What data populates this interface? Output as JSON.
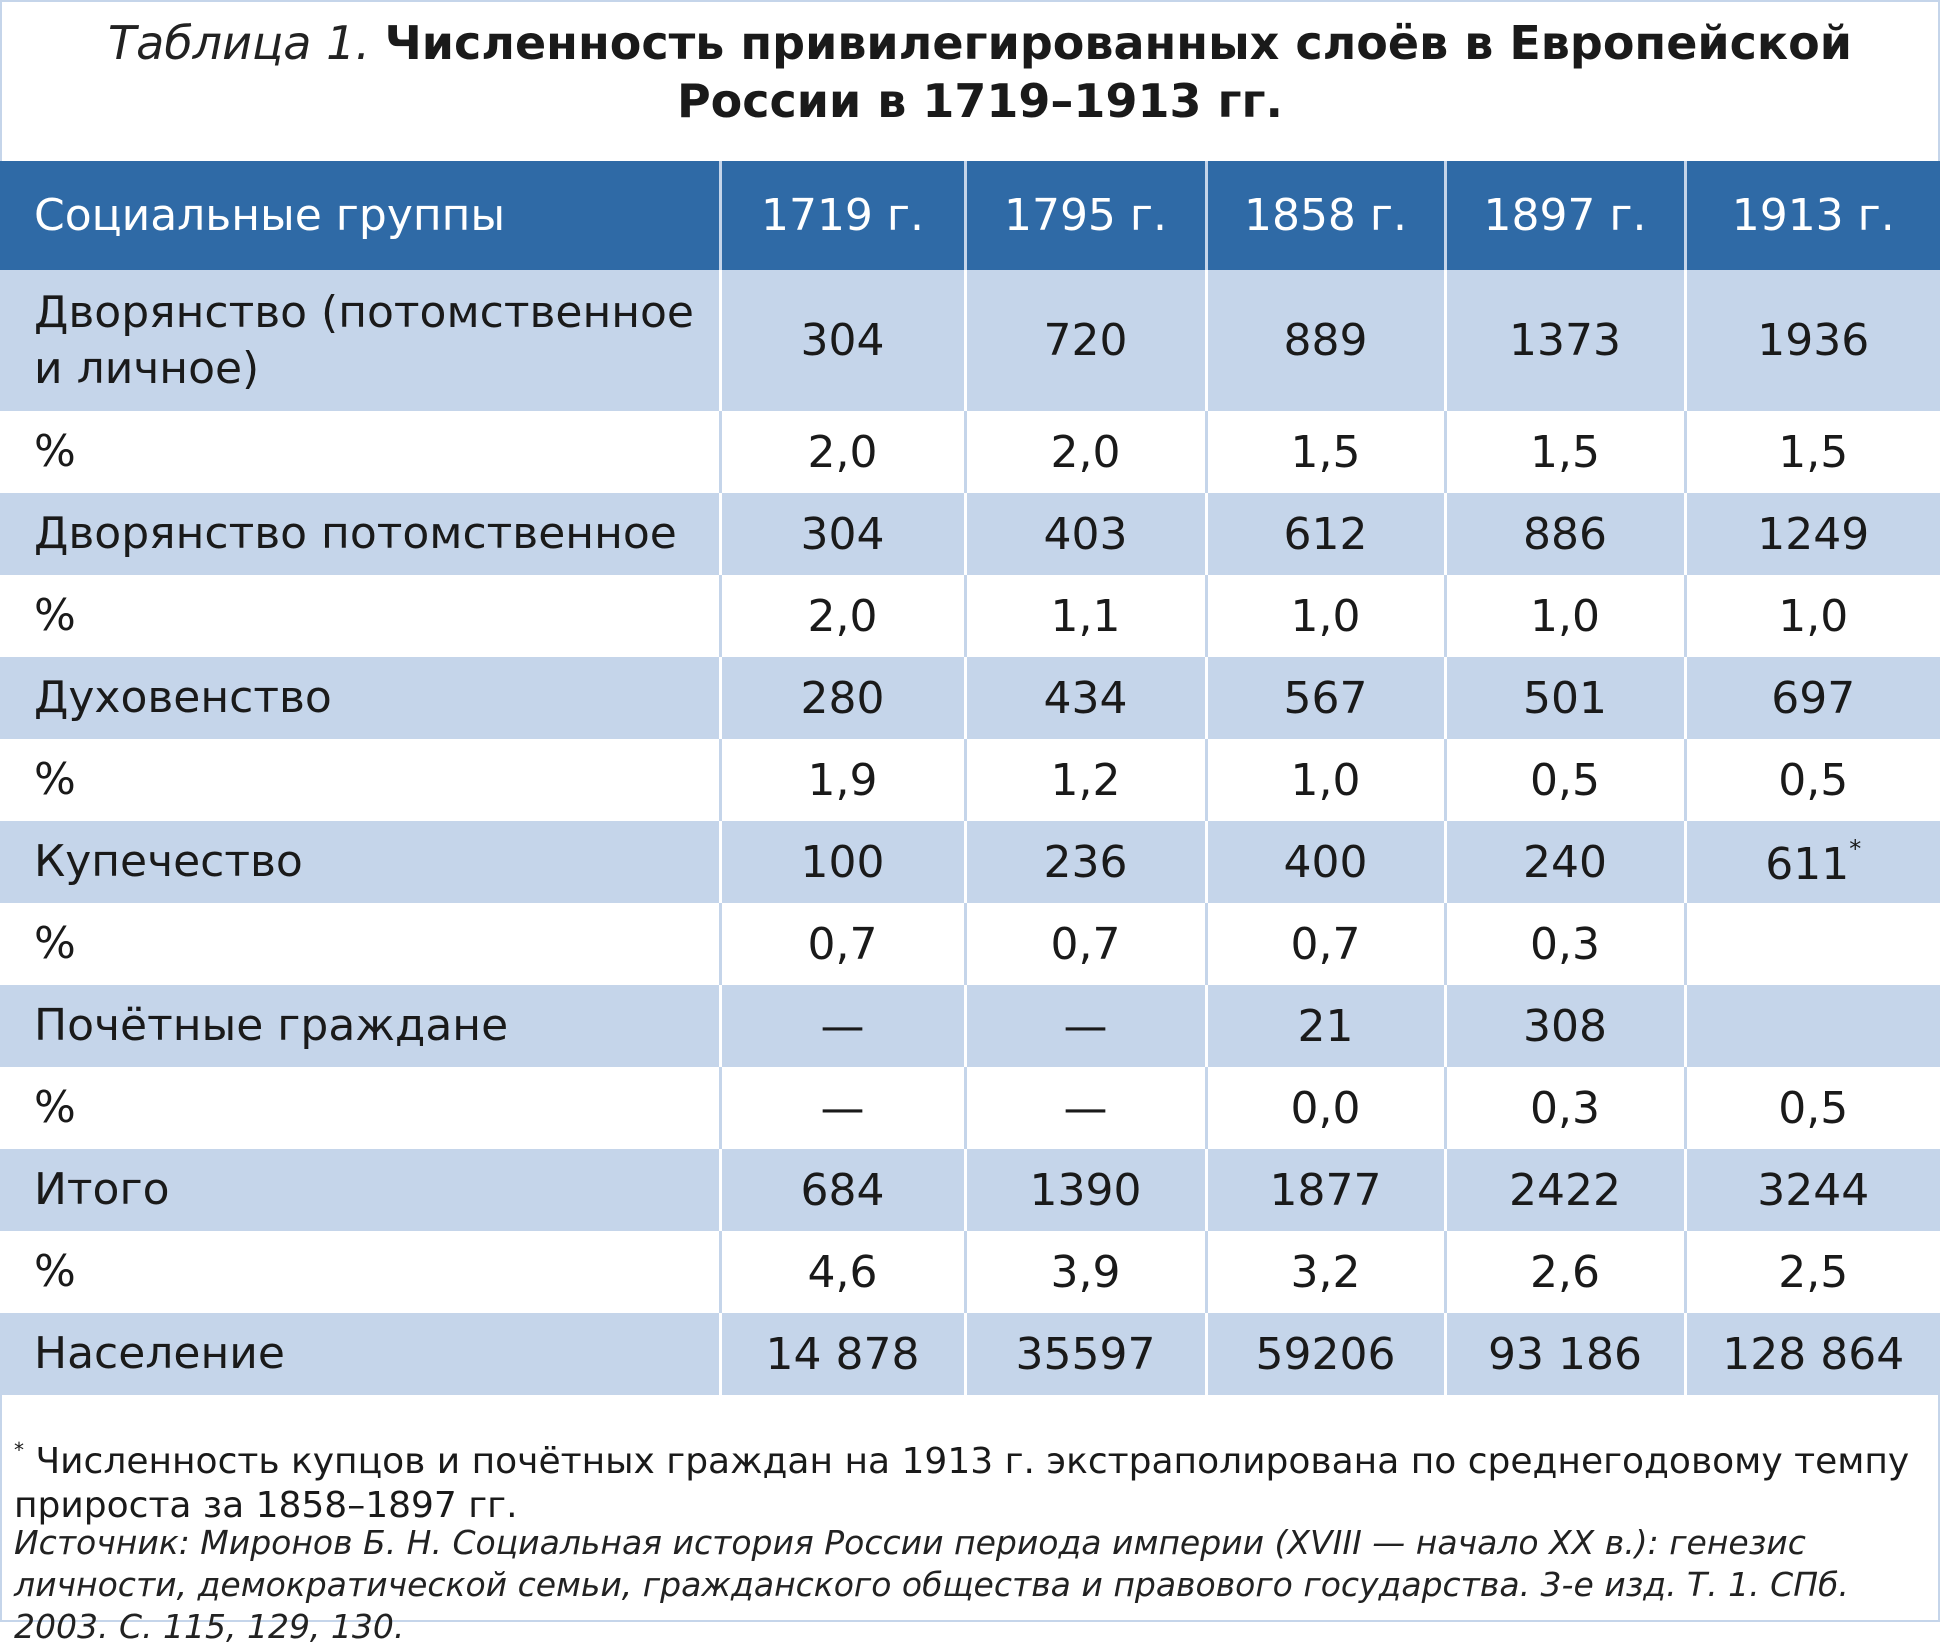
{
  "title": {
    "label": "Таблица 1.",
    "text": "Численность привилегированных слоёв в Европейской России в 1719–1913 гг."
  },
  "table": {
    "header": [
      "Социальные группы",
      "1719 г.",
      "1795 г.",
      "1858 г.",
      "1897 г.",
      "1913 г."
    ],
    "rows": [
      [
        "Дворянство (потомственное и личное)",
        "304",
        "720",
        "889",
        "1373",
        "1936"
      ],
      [
        "%",
        "2,0",
        "2,0",
        "1,5",
        "1,5",
        "1,5"
      ],
      [
        "Дворянство потомственное",
        "304",
        "403",
        "612",
        "886",
        "1249"
      ],
      [
        "%",
        "2,0",
        "1,1",
        "1,0",
        "1,0",
        "1,0"
      ],
      [
        "Духовенство",
        "280",
        "434",
        "567",
        "501",
        "697"
      ],
      [
        "%",
        "1,9",
        "1,2",
        "1,0",
        "0,5",
        "0,5"
      ],
      [
        "Купечество",
        "100",
        "236",
        "400",
        "240",
        {
          "value": "611",
          "mark": "*"
        }
      ],
      [
        "%",
        "0,7",
        "0,7",
        "0,7",
        "0,3",
        null
      ],
      [
        "Почётные граждане",
        "—",
        "—",
        "21",
        "308",
        null
      ],
      [
        "%",
        "—",
        "—",
        "0,0",
        "0,3",
        "0,5"
      ],
      [
        "Итого",
        "684",
        "1390",
        "1877",
        "2422",
        "3244"
      ],
      [
        "%",
        "4,6",
        "3,9",
        "3,2",
        "2,6",
        "2,5"
      ],
      [
        "Население",
        "14 878",
        "35597",
        "59206",
        "93 186",
        "128 864"
      ]
    ]
  },
  "footnote": {
    "mark": "*",
    "text": "Численность купцов и почётных граждан на 1913 г. экстраполирована по среднегодовому темпу прироста за 1858–1897 гг."
  },
  "source": "Источник: Миронов Б. Н. Социальная история России периода империи (XVIII — начало XX в.): генезис личности, демократической семьи, гражданского общества и правового государства. 3-е изд. Т. 1. СПб. 2003. С. 115, 129, 130."
}
